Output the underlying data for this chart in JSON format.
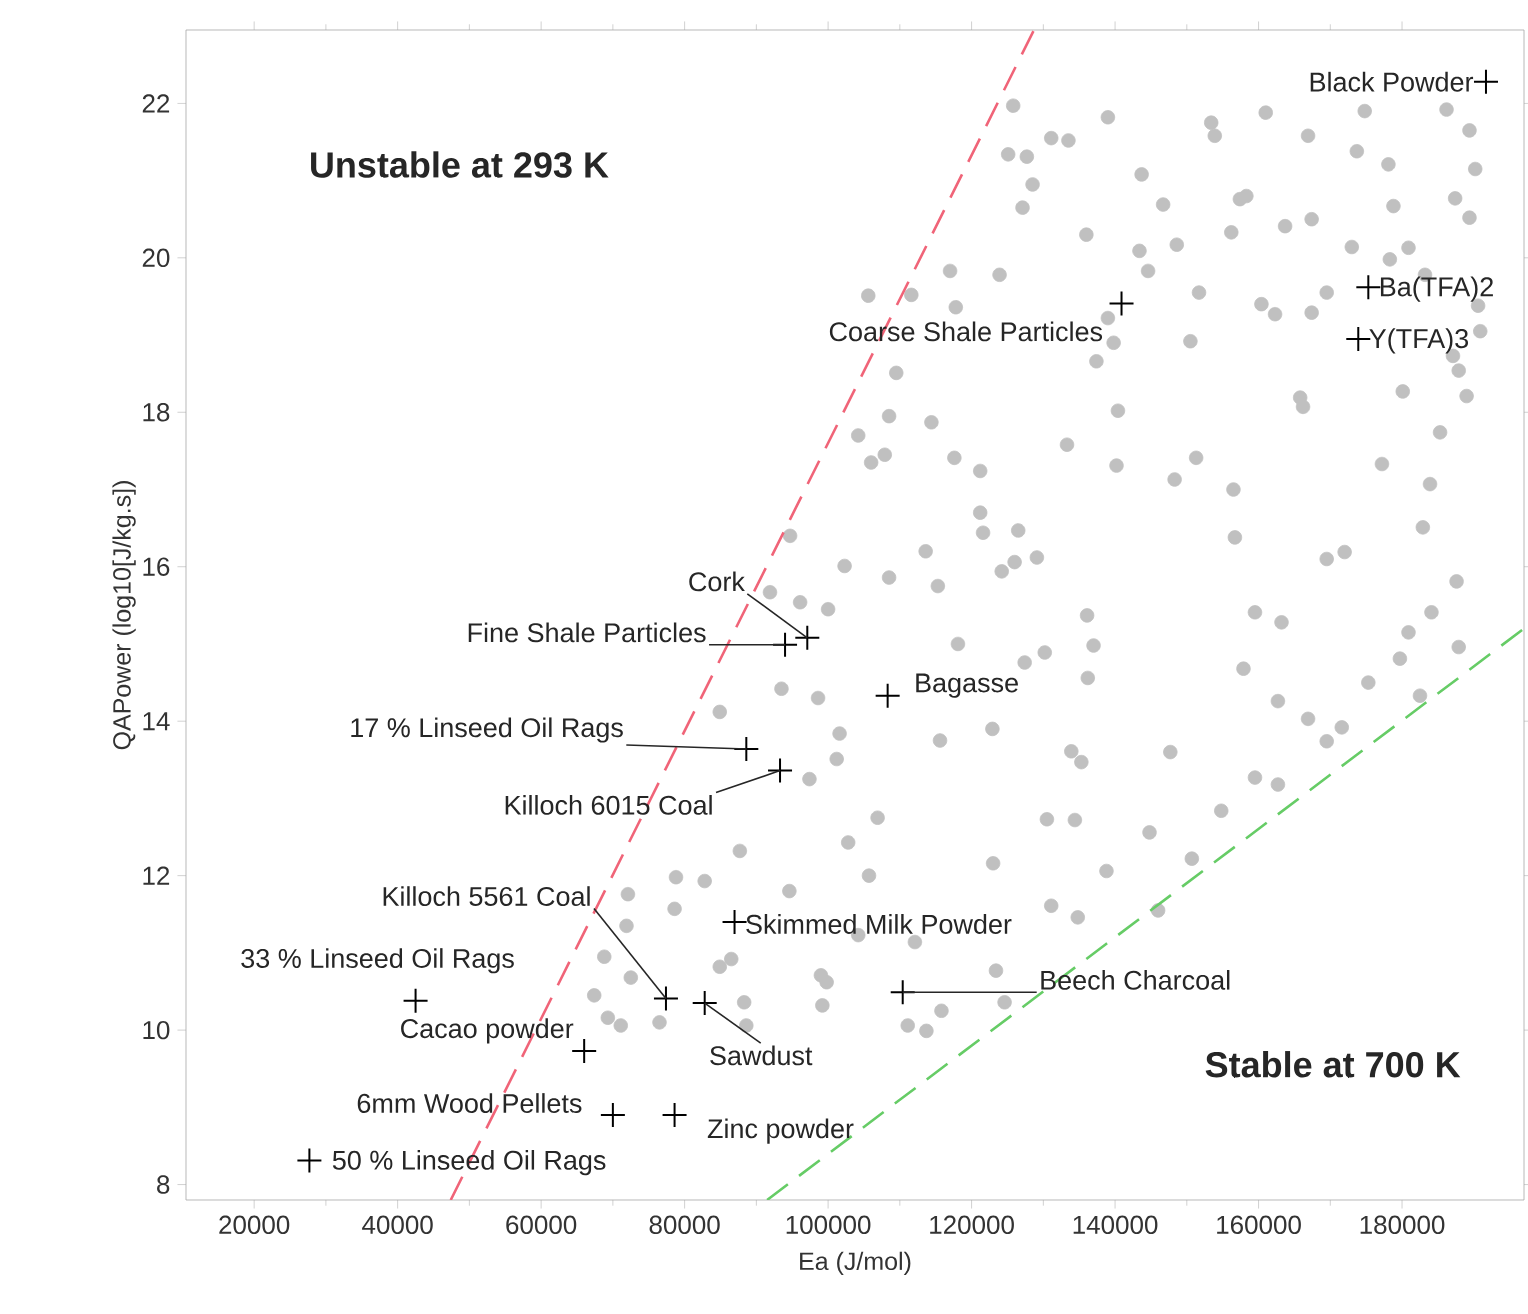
{
  "chart_data": {
    "type": "scatter",
    "xlabel": "Ea (J/mol)",
    "ylabel": "QAPower (log10[J/kg.s])",
    "xlim": [
      10500,
      197000
    ],
    "ylim": [
      7.8,
      22.95
    ],
    "xticks": [
      20000,
      40000,
      60000,
      80000,
      100000,
      120000,
      140000,
      160000,
      180000
    ],
    "yticks": [
      8,
      10,
      12,
      14,
      16,
      18,
      20,
      22
    ],
    "series": [
      {
        "color": "#c0c0c0",
        "marker": "circle",
        "x": [
          125800,
          139000,
          153400,
          153900,
          161000,
          174800,
          186200,
          189400,
          125100,
          127700,
          131100,
          133500,
          166900,
          173700,
          178100,
          190200,
          143700,
          128500,
          127100,
          146700,
          157400,
          158300,
          178800,
          187400,
          189400,
          136000,
          148600,
          156200,
          163700,
          167400,
          143400,
          144600,
          173000,
          178300,
          180900,
          117000,
          123900,
          105600,
          111600,
          117800,
          151700,
          160400,
          162300,
          167400,
          169500,
          183200,
          190600,
          190900,
          139000,
          139800,
          150500,
          137400,
          109500,
          187100,
          187900,
          180100,
          189000,
          108500,
          114400,
          104200,
          165800,
          166200,
          140400,
          185300,
          106000,
          107900,
          117600,
          121200,
          133300,
          151300,
          140200,
          148300,
          156500,
          177200,
          183900,
          121200,
          121600,
          126500,
          182900,
          113600,
          126000,
          129100,
          124200,
          169500,
          172000,
          102300,
          108500,
          115300,
          156700,
          187600,
          136100,
          159500,
          163200,
          184100,
          180900,
          94700,
          91900,
          96100,
          100000,
          118100,
          127400,
          130200,
          137000,
          136200,
          157900,
          162700,
          179700,
          187900,
          175300,
          182500,
          166900,
          171600,
          169500,
          115600,
          122900,
          133900,
          135300,
          147700,
          159500,
          162700,
          106900,
          102800,
          130500,
          134400,
          154800,
          144800,
          150700,
          123000,
          138800,
          105700,
          131100,
          134800,
          146000,
          112100,
          104200,
          123400,
          124600,
          115800,
          111100,
          113700,
          93500,
          98600,
          84900,
          101600,
          101200,
          97400,
          87700,
          78800,
          82800,
          94600,
          78600,
          72100,
          71900,
          68800,
          84900,
          86500,
          72500,
          99000,
          99800,
          67400,
          69300,
          71100,
          76500,
          88300,
          99200,
          88600
        ],
        "values": [
          21.97,
          21.82,
          21.75,
          21.58,
          21.88,
          21.9,
          21.92,
          21.65,
          21.34,
          21.31,
          21.55,
          21.52,
          21.58,
          21.38,
          21.21,
          21.15,
          21.08,
          20.95,
          20.65,
          20.69,
          20.76,
          20.8,
          20.67,
          20.77,
          20.52,
          20.3,
          20.17,
          20.33,
          20.41,
          20.5,
          20.09,
          19.83,
          20.14,
          19.98,
          20.13,
          19.83,
          19.78,
          19.51,
          19.52,
          19.36,
          19.55,
          19.4,
          19.27,
          19.29,
          19.55,
          19.78,
          19.38,
          19.05,
          19.22,
          18.9,
          18.92,
          18.66,
          18.51,
          18.73,
          18.54,
          18.27,
          18.21,
          17.95,
          17.87,
          17.7,
          18.19,
          18.07,
          18.02,
          17.74,
          17.35,
          17.45,
          17.41,
          17.24,
          17.58,
          17.41,
          17.31,
          17.13,
          17.0,
          17.33,
          17.07,
          16.7,
          16.44,
          16.47,
          16.51,
          16.2,
          16.06,
          16.12,
          15.94,
          16.1,
          16.19,
          16.01,
          15.86,
          15.75,
          16.38,
          15.81,
          15.37,
          15.41,
          15.28,
          15.41,
          15.15,
          16.4,
          15.67,
          15.54,
          15.45,
          15.0,
          14.76,
          14.89,
          14.98,
          14.56,
          14.68,
          14.26,
          14.81,
          14.96,
          14.5,
          14.33,
          14.03,
          13.92,
          13.74,
          13.75,
          13.9,
          13.61,
          13.47,
          13.6,
          13.27,
          13.18,
          12.75,
          12.43,
          12.73,
          12.72,
          12.84,
          12.56,
          12.22,
          12.16,
          12.06,
          12.0,
          11.61,
          11.46,
          11.55,
          11.14,
          11.23,
          10.77,
          10.36,
          10.25,
          10.06,
          9.99,
          14.42,
          14.3,
          14.12,
          13.84,
          13.51,
          13.25,
          12.32,
          11.98,
          11.93,
          11.8,
          11.57,
          11.76,
          11.35,
          10.95,
          10.82,
          10.92,
          10.68,
          10.71,
          10.62,
          10.45,
          10.16,
          10.06,
          10.1,
          10.36,
          10.32,
          10.06
        ]
      },
      {
        "color": "#000000",
        "marker": "cross",
        "x": [
          191700,
          175300,
          173900,
          140900,
          97100,
          94000,
          88600,
          93300,
          108300,
          86960,
          77400,
          82800,
          42500,
          66000,
          70000,
          78600,
          27700,
          110400
        ],
        "values": [
          22.28,
          19.62,
          18.95,
          19.41,
          15.08,
          14.99,
          13.64,
          13.36,
          14.33,
          11.4,
          10.41,
          10.35,
          10.38,
          9.73,
          8.9,
          8.9,
          8.31,
          10.49
        ]
      },
      {
        "type": "line",
        "color": "#f06478",
        "line_style": "dashed",
        "marker": "none",
        "x": [
          47400,
          128700
        ],
        "values": [
          7.8,
          22.95
        ]
      },
      {
        "type": "line",
        "color": "#66cc66",
        "line_style": "dashed",
        "marker": "none",
        "x": [
          91500,
          197000
        ],
        "values": [
          7.8,
          15.2
        ]
      }
    ],
    "annotations": [
      "Unstable at 293 K",
      "Stable at 700 K",
      {
        "text": "Black Powder",
        "x": 191700,
        "y": 22.28
      },
      {
        "text": "Ba(TFA)2",
        "x": 175300,
        "y": 19.62
      },
      {
        "text": "Y(TFA)3",
        "x": 173900,
        "y": 18.95
      },
      {
        "text": "Coarse Shale Particles",
        "x": 140900,
        "y": 19.41
      },
      {
        "text": "Cork",
        "x": 97100,
        "y": 15.08
      },
      {
        "text": "Fine Shale Particles",
        "x": 94000,
        "y": 14.99
      },
      {
        "text": "17 % Linseed Oil Rags",
        "x": 88600,
        "y": 13.64
      },
      {
        "text": "Killoch 6015 Coal",
        "x": 93300,
        "y": 13.36
      },
      {
        "text": "Bagasse",
        "x": 108300,
        "y": 14.33
      },
      {
        "text": "Skimmed Milk Powder",
        "x": 86960,
        "y": 11.4
      },
      {
        "text": "Killoch 5561 Coal",
        "x": 77400,
        "y": 10.41
      },
      {
        "text": "Sawdust",
        "x": 82800,
        "y": 10.35
      },
      {
        "text": "33 % Linseed Oil Rags",
        "x": 42500,
        "y": 10.38
      },
      {
        "text": "Cacao powder",
        "x": 66000,
        "y": 9.73
      },
      {
        "text": "6mm Wood Pellets",
        "x": 70000,
        "y": 8.9
      },
      {
        "text": "Zinc powder",
        "x": 78600,
        "y": 8.9
      },
      {
        "text": "50 % Linseed Oil Rags",
        "x": 27700,
        "y": 8.31
      },
      {
        "text": "Beech Charcoal",
        "x": 110400,
        "y": 10.49
      }
    ]
  }
}
